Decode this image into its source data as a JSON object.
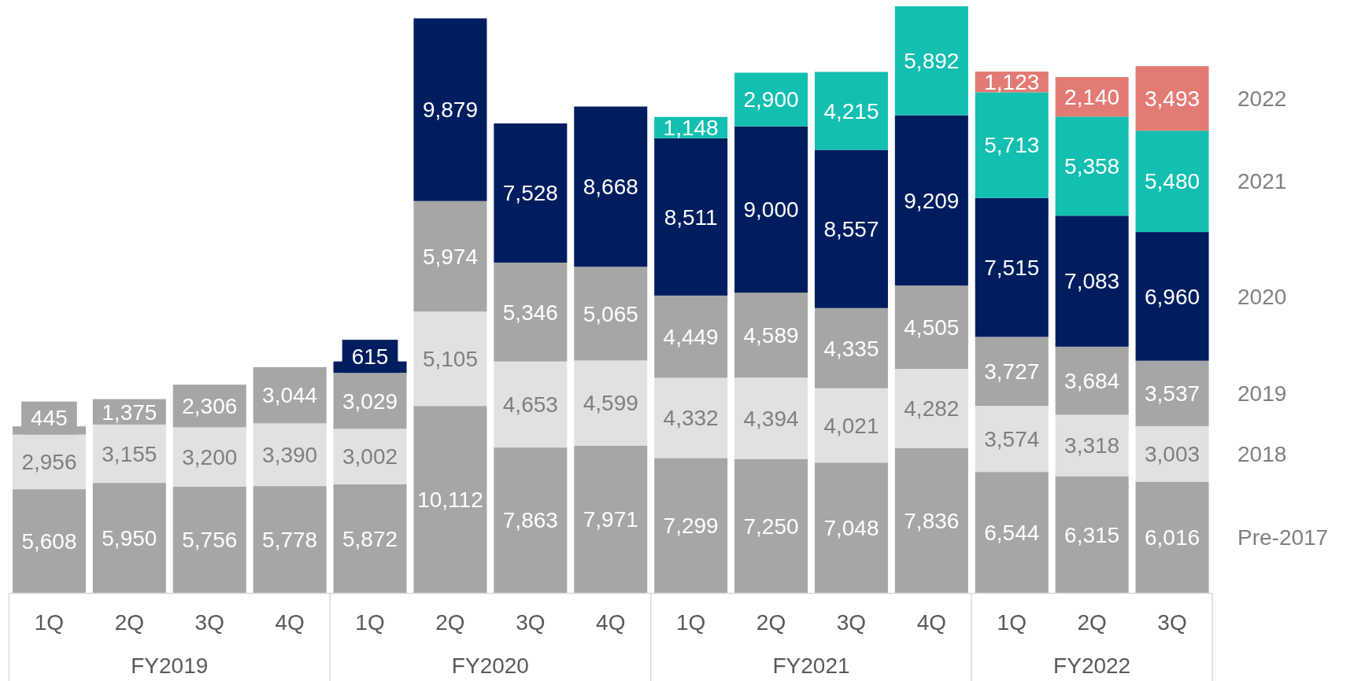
{
  "chart_data": {
    "type": "bar",
    "stacked": true,
    "legend": "right",
    "categories": [
      "1Q",
      "2Q",
      "3Q",
      "4Q",
      "1Q",
      "2Q",
      "3Q",
      "4Q",
      "1Q",
      "2Q",
      "3Q",
      "4Q",
      "1Q",
      "2Q",
      "3Q"
    ],
    "annotations": [
      "FY2019",
      "FY2020",
      "FY2021",
      "FY2022"
    ],
    "series": [
      {
        "name": "Pre-2017",
        "color": "#a6a6a6",
        "values": [
          5608,
          5950,
          5756,
          5778,
          5872,
          10112,
          7863,
          7971,
          7299,
          7250,
          7048,
          7836,
          6544,
          6315,
          6016
        ],
        "value_labels": [
          "5,608",
          "5,950",
          "5,756",
          "5,778",
          "5,872",
          "10,112",
          "7,863",
          "7,971",
          "7,299",
          "7,250",
          "7,048",
          "7,836",
          "6,544",
          "6,315",
          "6,016"
        ]
      },
      {
        "name": "2018",
        "color": "#e0e1e3",
        "values": [
          2956,
          3155,
          3200,
          3390,
          3002,
          5105,
          4653,
          4599,
          4332,
          4394,
          4021,
          4282,
          3574,
          3318,
          3003
        ],
        "value_labels": [
          "2,956",
          "3,155",
          "3,200",
          "3,390",
          "3,002",
          "5,105",
          "4,653",
          "4,599",
          "4,332",
          "4,394",
          "4,021",
          "4,282",
          "3,574",
          "3,318",
          "3,003"
        ]
      },
      {
        "name": "2019",
        "color": "#a6a6a6",
        "values": [
          445,
          1375,
          2306,
          3044,
          3029,
          5974,
          5346,
          5065,
          4449,
          4589,
          4335,
          4505,
          3727,
          3684,
          3537
        ],
        "value_labels": [
          "445",
          "1,375",
          "2,306",
          "3,044",
          "3,029",
          "5,974",
          "5,346",
          "5,065",
          "4,449",
          "4,589",
          "4,335",
          "4,505",
          "3,727",
          "3,684",
          "3,537"
        ]
      },
      {
        "name": "2020",
        "color": "#001e5f",
        "values": [
          null,
          null,
          null,
          null,
          615,
          9879,
          7528,
          8668,
          8511,
          9000,
          8557,
          9209,
          7515,
          7083,
          6960
        ],
        "value_labels": [
          null,
          null,
          null,
          null,
          "615",
          "9,879",
          "7,528",
          "8,668",
          "8,511",
          "9,000",
          "8,557",
          "9,209",
          "7,515",
          "7,083",
          "6,960"
        ]
      },
      {
        "name": "2021",
        "color": "#13bfb0",
        "values": [
          null,
          null,
          null,
          null,
          null,
          null,
          null,
          null,
          1148,
          2900,
          4215,
          5892,
          5713,
          5358,
          5480
        ],
        "value_labels": [
          null,
          null,
          null,
          null,
          null,
          null,
          null,
          null,
          "1,148",
          "2,900",
          "4,215",
          "5,892",
          "5,713",
          "5,358",
          "5,480"
        ]
      },
      {
        "name": "2022",
        "color": "#e37b75",
        "values": [
          null,
          null,
          null,
          null,
          null,
          null,
          null,
          null,
          null,
          null,
          null,
          null,
          1123,
          2140,
          3493
        ],
        "value_labels": [
          null,
          null,
          null,
          null,
          null,
          null,
          null,
          null,
          null,
          null,
          null,
          null,
          "1,123",
          "2,140",
          "3,493"
        ]
      }
    ]
  }
}
